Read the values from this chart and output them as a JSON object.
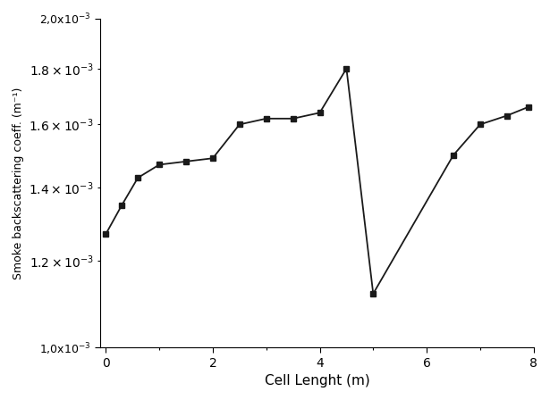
{
  "x": [
    0.0,
    0.3,
    0.6,
    1.0,
    1.5,
    2.0,
    2.5,
    3.0,
    3.5,
    4.0,
    4.5,
    5.0,
    6.5,
    7.0,
    7.5,
    7.9
  ],
  "y": [
    0.00127,
    0.00135,
    0.00143,
    0.00147,
    0.00148,
    0.00149,
    0.0016,
    0.00162,
    0.00162,
    0.00164,
    0.0018,
    0.00112,
    0.0015,
    0.0016,
    0.00163,
    0.00166
  ],
  "xlabel": "Cell Lenght (m)",
  "ylabel": "Smoke backscattering coeff. (m⁻¹)",
  "ylim_min": 0.001,
  "ylim_max": 0.002,
  "xlim_min": -0.1,
  "xlim_max": 8.0,
  "line_color": "#1a1a1a",
  "marker": "s",
  "marker_size": 4,
  "line_width": 1.3,
  "background_color": "#ffffff",
  "yticks": [
    0.001,
    0.002
  ],
  "ytick_labels": [
    "1,0x10$^{-3}$",
    "2,0x10$^{-3}$"
  ],
  "xticks": [
    0,
    2,
    4,
    6,
    8
  ]
}
